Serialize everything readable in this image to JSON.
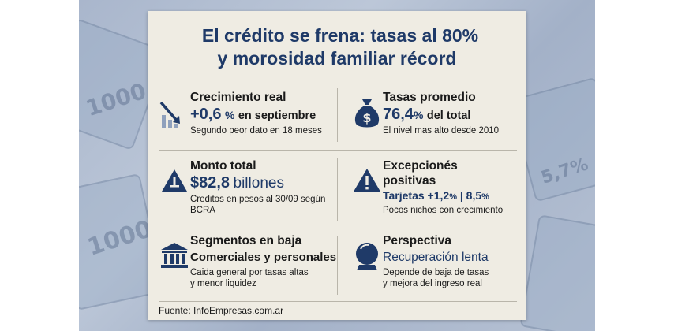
{
  "background": {
    "text_1": "1000",
    "text_2": "5,7%",
    "text_3": "1000"
  },
  "title": {
    "line1": "El crédito se frena: tasas al 80%",
    "line2": "y morosidad familiar récord"
  },
  "cells": {
    "growth": {
      "icon": "down-trend-chart-icon",
      "heading": "Crecimiento real",
      "value": "+0,6",
      "value_unit": "%",
      "value_suffix": "en septiembre",
      "note": "Segundo peor dato en 18 meses"
    },
    "rates": {
      "icon": "money-bag-icon",
      "heading": "Tasas promedio",
      "value": "76,4",
      "value_unit": "%",
      "value_suffix": "del total",
      "note": "El nivel mas alto desde 2010"
    },
    "total": {
      "icon": "warning-triangle-icon",
      "heading": "Monto total",
      "value": "$82,8",
      "value_suffix": "billones",
      "note_line1": "Creditos en pesos al 30/09 según",
      "note_line2": "BCRA"
    },
    "exceptions": {
      "icon": "alert-triangle-icon",
      "heading_line1": "Excepcionés",
      "heading_line2": "positivas",
      "detail_label": "Tarjetas +1,2",
      "detail_unit": "%",
      "detail_separator": "|",
      "detail_value": "8,5",
      "detail_value_unit": "%",
      "note": "Pocos nichos con crecimiento"
    },
    "segments": {
      "icon": "bank-building-icon",
      "heading": "Segmentos en baja",
      "subheading": "Comerciales y personales",
      "note_line1": "Caida general por tasas altas",
      "note_line2": "y menor liquidez"
    },
    "outlook": {
      "icon": "crystal-ball-icon",
      "heading": "Perspectiva",
      "subheading": "Recuperación lenta",
      "note_line1": "Depende de baja de tasas",
      "note_line2": "y mejora del ingreso real"
    }
  },
  "source": "Fuente: InfoEmpresas.com.ar",
  "colors": {
    "accent": "#1f3a68",
    "card": "#efece3",
    "text": "#1a1a1a"
  }
}
